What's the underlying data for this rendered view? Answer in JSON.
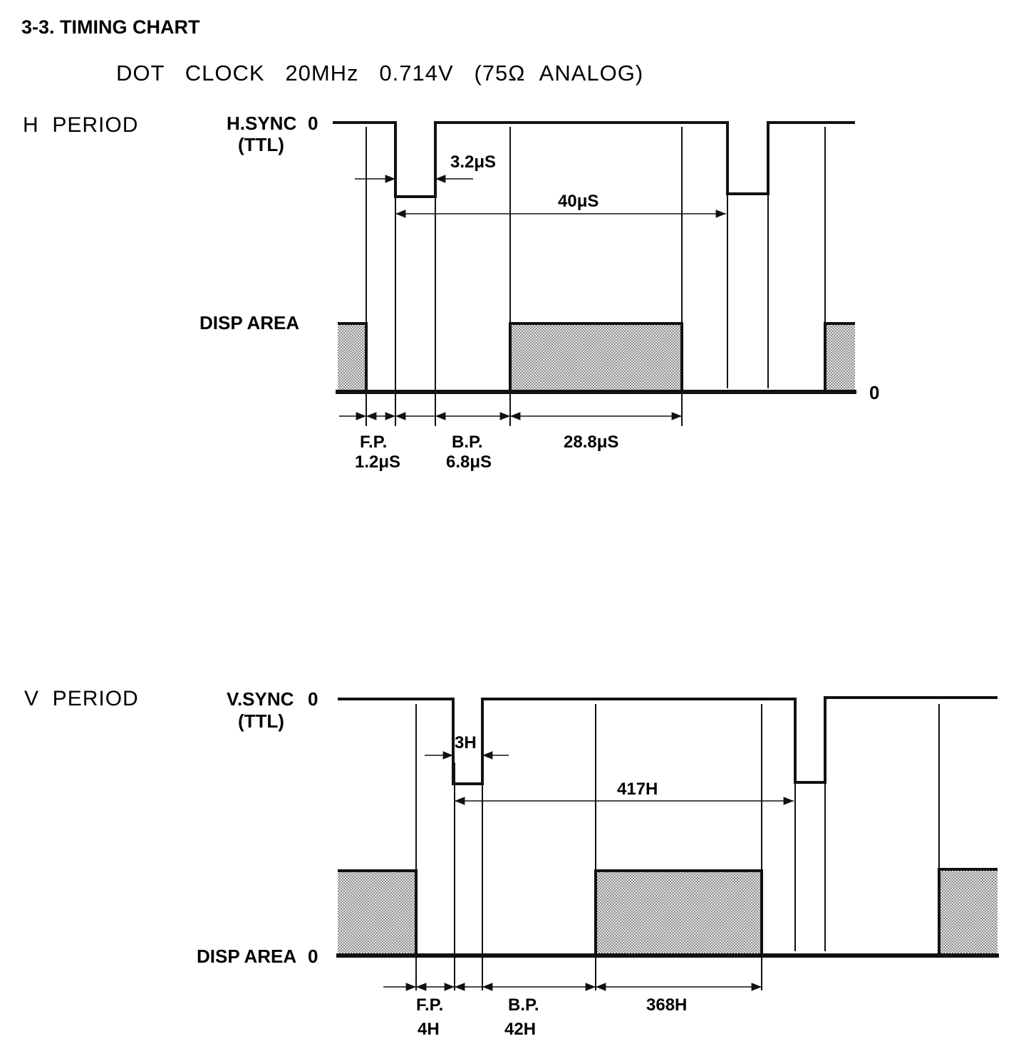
{
  "title": "3-3.  TIMING CHART",
  "subtitle": "DOT   CLOCK   20MHz   0.714V   (75Ω  ANALOG)",
  "zero": "0",
  "h_period": {
    "label": "H  PERIOD",
    "sync_line1": "H.SYNC",
    "sync_line2": "(TTL)",
    "disp_label": "DISP AREA",
    "pulse": "3.2μS",
    "period": "40μS",
    "fp_label": "F.P.",
    "fp_value": "1.2μS",
    "bp_label": "B.P.",
    "bp_value": "6.8μS",
    "active": "28.8μS"
  },
  "v_period": {
    "label": "V  PERIOD",
    "sync_line1": "V.SYNC",
    "sync_line2": "(TTL)",
    "disp_label": "DISP AREA",
    "pulse": "3H",
    "period": "417H",
    "fp_label": "F.P.",
    "fp_value": "4H",
    "bp_label": "B.P.",
    "bp_value": "42H",
    "active": "368H"
  },
  "colors": {
    "ink": "#111111",
    "shade": "#9a9a9a"
  }
}
